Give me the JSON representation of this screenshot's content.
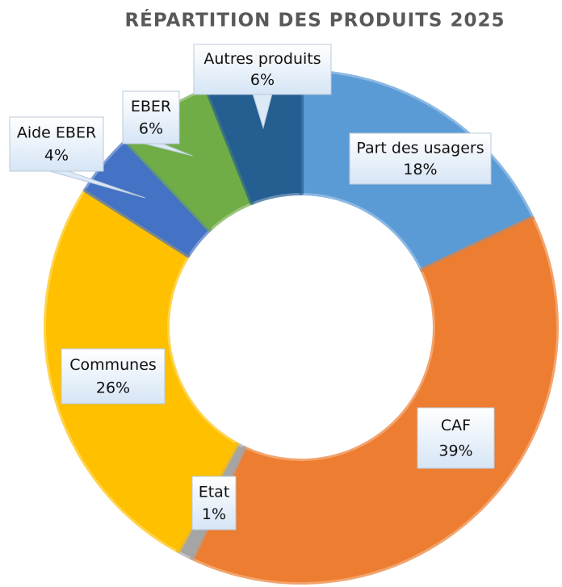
{
  "chart_data": {
    "type": "donut",
    "title": "RÉPARTITION DES PRODUITS 2025",
    "categories": [
      "Part des usagers",
      "CAF",
      "Etat",
      "Communes",
      "Aide EBER",
      "EBER",
      "Autres produits"
    ],
    "values": [
      18,
      39,
      1,
      26,
      4,
      6,
      6
    ],
    "value_labels": [
      "18%",
      "39%",
      "1%",
      "26%",
      "4%",
      "6%",
      "6%"
    ],
    "colors": [
      "#5b9bd5",
      "#ed7d31",
      "#a5a5a5",
      "#ffc000",
      "#4472c4",
      "#70ad47",
      "#255e91"
    ]
  }
}
